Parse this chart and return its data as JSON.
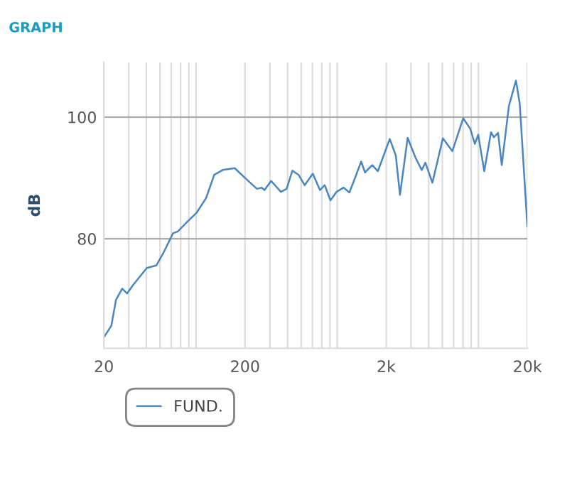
{
  "chart_data": {
    "type": "line",
    "title": "GRAPH",
    "ylabel": "dB",
    "log": "x",
    "grid": true,
    "legend": "bottom",
    "marker": "none",
    "line_style": "solid",
    "xlim": [
      20,
      20000
    ],
    "ylim": [
      62,
      109
    ],
    "xticks": [
      20,
      {
        "value": 30,
        "label": null
      },
      {
        "value": 40,
        "label": null
      },
      {
        "value": 50,
        "label": null
      },
      {
        "value": 60,
        "label": null
      },
      {
        "value": 70,
        "label": null
      },
      {
        "value": 80,
        "label": null
      },
      {
        "value": 90,
        "label": null
      },
      200,
      {
        "value": 300,
        "label": null
      },
      {
        "value": 400,
        "label": null
      },
      {
        "value": 500,
        "label": null
      },
      {
        "value": 600,
        "label": null
      },
      {
        "value": 700,
        "label": null
      },
      {
        "value": 800,
        "label": null
      },
      {
        "value": 900,
        "label": null
      },
      {
        "value": 2000,
        "label": "2k"
      },
      {
        "value": 3000,
        "label": null
      },
      {
        "value": 4000,
        "label": null
      },
      {
        "value": 5000,
        "label": null
      },
      {
        "value": 6000,
        "label": null
      },
      {
        "value": 7000,
        "label": null
      },
      {
        "value": 8000,
        "label": null
      },
      {
        "value": 9000,
        "label": null
      },
      {
        "value": 20000,
        "label": "20k"
      }
    ],
    "yticks": [
      80,
      100
    ],
    "series": [
      {
        "name": "FUND.",
        "color": "#4a86c0",
        "x": [
          20,
          22.6,
          24.4,
          27,
          29.2,
          32,
          40.3,
          47,
          52.9,
          61.8,
          66.8,
          78,
          91,
          106,
          121,
          139,
          169,
          204,
          243,
          262,
          275,
          306,
          359,
          394,
          433,
          479,
          529,
          604,
          679,
          734,
          805,
          889,
          998,
          1097,
          1212,
          1330,
          1415,
          1592,
          1746,
          2119,
          2338,
          2504,
          2838,
          3230,
          3570,
          3790,
          4250,
          5040,
          5880,
          7020,
          7870,
          8490,
          8970,
          9900,
          11050,
          11570,
          12400,
          13170,
          14790,
          16600,
          17660,
          20000
        ],
        "values": [
          63.8,
          65.7,
          70.0,
          71.8,
          71.0,
          72.3,
          75.2,
          75.6,
          77.7,
          80.9,
          81.2,
          82.8,
          84.3,
          86.7,
          90.5,
          91.3,
          91.6,
          89.8,
          88.2,
          88.4,
          88.0,
          89.5,
          87.7,
          88.2,
          91.2,
          90.5,
          88.8,
          90.7,
          88.0,
          88.8,
          86.3,
          87.7,
          88.4,
          87.6,
          90.2,
          92.7,
          90.9,
          92.1,
          91.1,
          96.4,
          93.7,
          87.2,
          96.6,
          93.3,
          91.3,
          92.5,
          89.2,
          96.5,
          94.4,
          99.8,
          98.1,
          95.6,
          97.1,
          91.1,
          97.5,
          96.7,
          97.4,
          92.1,
          101.8,
          106.0,
          102.2,
          82.0
        ]
      }
    ]
  }
}
